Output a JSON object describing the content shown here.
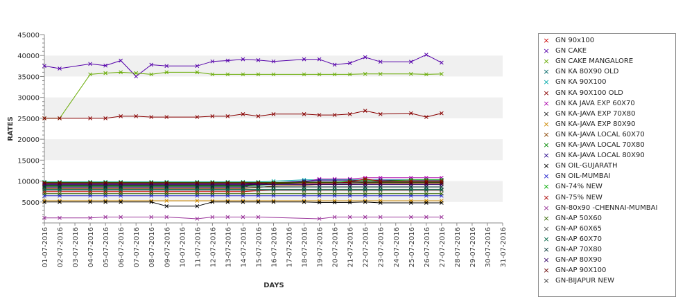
{
  "chart_data": {
    "type": "line",
    "xlabel": "DAYS",
    "ylabel": "RATES",
    "ylim": [
      0,
      45000
    ],
    "yticks": [
      5000,
      10000,
      15000,
      20000,
      25000,
      30000,
      35000,
      40000,
      45000
    ],
    "grid": "alternating horizontal bands",
    "legend_position": "right",
    "x": [
      "01-07-2016",
      "02-07-2016",
      "03-07-2016",
      "04-07-2016",
      "05-07-2016",
      "06-07-2016",
      "07-07-2016",
      "08-07-2016",
      "09-07-2016",
      "10-07-2016",
      "11-07-2016",
      "12-07-2016",
      "13-07-2016",
      "14-07-2016",
      "15-07-2016",
      "16-07-2016",
      "17-07-2016",
      "18-07-2016",
      "19-07-2016",
      "20-07-2016",
      "21-07-2016",
      "22-07-2016",
      "23-07-2016",
      "24-07-2016",
      "25-07-2016",
      "26-07-2016",
      "27-07-2016",
      "28-07-2016",
      "29-07-2016",
      "30-07-2016",
      "31-07-2016"
    ],
    "series": [
      {
        "name": "GN 90x100",
        "color": "#cc0000",
        "values": [
          7500,
          null,
          null,
          7500,
          7500,
          7500,
          null,
          7500,
          7500,
          null,
          7500,
          7500,
          7500,
          7500,
          7700,
          7800,
          null,
          7800,
          7800,
          7800,
          7800,
          7800,
          7800,
          null,
          7800,
          7800,
          7800,
          null,
          null,
          null,
          null
        ]
      },
      {
        "name": "GN CAKE",
        "color": "#5500aa",
        "values": [
          37500,
          36900,
          null,
          38000,
          37600,
          38800,
          35000,
          37800,
          37500,
          null,
          37500,
          38600,
          38800,
          39100,
          38900,
          38600,
          null,
          39100,
          39100,
          37800,
          38200,
          39600,
          38500,
          null,
          38500,
          40200,
          38300,
          null,
          null,
          null,
          null
        ]
      },
      {
        "name": "GN CAKE MANGALORE",
        "color": "#66aa00",
        "values": [
          25000,
          25000,
          null,
          35500,
          35800,
          36000,
          35800,
          35500,
          36000,
          null,
          36000,
          35500,
          35500,
          35500,
          35500,
          35500,
          null,
          35500,
          35500,
          35500,
          35500,
          35600,
          35600,
          null,
          35600,
          35500,
          35600,
          null,
          null,
          null,
          null
        ]
      },
      {
        "name": "GN KA 80X90 OLD",
        "color": "#006666",
        "values": [
          9000,
          9000,
          null,
          9000,
          9000,
          9000,
          null,
          9000,
          9000,
          null,
          9000,
          9000,
          9000,
          9000,
          9000,
          9200,
          null,
          9500,
          9500,
          9500,
          9500,
          9600,
          9600,
          null,
          9600,
          9600,
          9600,
          null,
          null,
          null,
          null
        ]
      },
      {
        "name": "GN KA 90X100",
        "color": "#00aaaa",
        "values": [
          9800,
          9800,
          null,
          9800,
          9800,
          9800,
          null,
          9800,
          9800,
          null,
          9800,
          9800,
          9800,
          9800,
          9800,
          10000,
          null,
          10300,
          10300,
          10300,
          10300,
          10300,
          10300,
          null,
          10300,
          10300,
          10300,
          null,
          null,
          null,
          null
        ]
      },
      {
        "name": "GN KA 90X100 OLD",
        "color": "#880000",
        "values": [
          25000,
          25000,
          null,
          25000,
          25000,
          25500,
          25500,
          25300,
          25300,
          null,
          25300,
          25500,
          25500,
          26000,
          25500,
          26000,
          null,
          26000,
          25800,
          25800,
          26000,
          26800,
          26000,
          null,
          26200,
          25300,
          26200,
          null,
          null,
          null,
          null
        ]
      },
      {
        "name": "GN KA JAVA EXP 60X70",
        "color": "#aa00aa",
        "values": [
          8500,
          8500,
          null,
          8500,
          8500,
          8500,
          null,
          8500,
          8500,
          null,
          8500,
          8500,
          8500,
          8500,
          9500,
          9500,
          null,
          9800,
          10500,
          10500,
          10500,
          10800,
          10800,
          null,
          10800,
          10800,
          10800,
          null,
          null,
          null,
          null
        ]
      },
      {
        "name": "GN KA-JAVA EXP 70X80",
        "color": "#222222",
        "values": [
          9000,
          9000,
          null,
          9000,
          9000,
          9000,
          null,
          9000,
          9000,
          null,
          9000,
          9000,
          9000,
          9000,
          9200,
          9500,
          null,
          9800,
          9800,
          9800,
          9800,
          9900,
          9900,
          null,
          9900,
          9900,
          9900,
          null,
          null,
          null,
          null
        ]
      },
      {
        "name": "GN KA-JAVA EXP 80X90",
        "color": "#cc8800",
        "values": [
          5300,
          5300,
          null,
          5300,
          5300,
          5300,
          null,
          5300,
          5300,
          null,
          5300,
          5300,
          5300,
          5300,
          5300,
          5300,
          null,
          5300,
          5300,
          5300,
          5300,
          5300,
          5300,
          null,
          5300,
          5300,
          5300,
          null,
          null,
          null,
          null
        ]
      },
      {
        "name": "GN KA-JAVA LOCAL 60X70",
        "color": "#884400",
        "values": [
          8200,
          8200,
          null,
          8200,
          8200,
          8200,
          null,
          8200,
          8200,
          null,
          8200,
          8200,
          8200,
          8200,
          8500,
          8800,
          null,
          9000,
          9200,
          9200,
          9200,
          9300,
          9300,
          null,
          9300,
          9300,
          9300,
          null,
          null,
          null,
          null
        ]
      },
      {
        "name": "GN KA-JAVA LOCAL 70X80",
        "color": "#008800",
        "values": [
          8800,
          8800,
          null,
          8800,
          8800,
          8800,
          null,
          8800,
          8800,
          null,
          8800,
          8800,
          8800,
          8800,
          9000,
          9300,
          null,
          9600,
          9600,
          9600,
          9600,
          9700,
          9700,
          null,
          9700,
          9700,
          9700,
          null,
          null,
          null,
          null
        ]
      },
      {
        "name": "GN KA-JAVA LOCAL 80X90",
        "color": "#220088",
        "values": [
          9300,
          9300,
          null,
          9300,
          9300,
          9300,
          null,
          9300,
          9300,
          null,
          9300,
          9300,
          9300,
          9300,
          9400,
          9600,
          null,
          10000,
          10200,
          10200,
          10200,
          10200,
          10200,
          null,
          10200,
          10200,
          10200,
          null,
          null,
          null,
          null
        ]
      },
      {
        "name": "GN OIL-GUJARATH",
        "color": "#000000",
        "values": [
          5000,
          5000,
          null,
          5000,
          5000,
          5000,
          null,
          5000,
          4000,
          null,
          4000,
          5000,
          5000,
          5000,
          5000,
          5000,
          null,
          5000,
          4900,
          4900,
          4900,
          5000,
          4800,
          null,
          4800,
          4800,
          4800,
          null,
          null,
          null,
          null
        ]
      },
      {
        "name": "GN OIL-MUMBAI",
        "color": "#2222cc",
        "values": [
          6500,
          6500,
          null,
          6500,
          6500,
          6500,
          null,
          6500,
          6500,
          null,
          6500,
          6500,
          6500,
          6500,
          6500,
          6500,
          null,
          6500,
          6500,
          6500,
          6500,
          6500,
          6500,
          null,
          6500,
          6500,
          6500,
          null,
          null,
          null,
          null
        ]
      },
      {
        "name": "GN-74% NEW",
        "color": "#00aa00",
        "values": [
          9700,
          9700,
          null,
          9700,
          9700,
          9700,
          null,
          9700,
          9700,
          null,
          9700,
          9700,
          9700,
          9700,
          9700,
          9700,
          null,
          9700,
          9700,
          9700,
          10000,
          10300,
          10000,
          null,
          10300,
          10300,
          10300,
          null,
          null,
          null,
          null
        ]
      },
      {
        "name": "GN-75% NEW",
        "color": "#aa0000",
        "values": [
          9500,
          9500,
          null,
          9500,
          9500,
          9500,
          null,
          9500,
          9500,
          null,
          9500,
          9500,
          9500,
          9500,
          9500,
          9500,
          null,
          9500,
          9500,
          9500,
          9800,
          10500,
          10000,
          null,
          10000,
          10000,
          10000,
          null,
          null,
          null,
          null
        ]
      },
      {
        "name": "GN-80x90 -CHENNAI-MUMBAI",
        "color": "#993399",
        "values": [
          1200,
          1200,
          null,
          1200,
          1400,
          1400,
          null,
          1400,
          1400,
          null,
          1000,
          1400,
          1400,
          1400,
          1400,
          null,
          null,
          null,
          1000,
          1400,
          1400,
          1400,
          1400,
          null,
          1400,
          1400,
          1400,
          null,
          null,
          null,
          null
        ]
      },
      {
        "name": "GN-AP 50X60",
        "color": "#336600",
        "values": [
          7000,
          7000,
          null,
          7000,
          7000,
          7000,
          null,
          7000,
          7000,
          null,
          7000,
          7000,
          7000,
          7000,
          7000,
          7000,
          null,
          7000,
          7000,
          7000,
          7000,
          7000,
          7000,
          null,
          7000,
          7000,
          7000,
          null,
          null,
          null,
          null
        ]
      },
      {
        "name": "GN-AP 60X65",
        "color": "#555555",
        "values": [
          7800,
          7800,
          null,
          7800,
          7800,
          7800,
          null,
          7800,
          7800,
          null,
          7800,
          7800,
          7800,
          7800,
          7800,
          7800,
          null,
          7800,
          7800,
          7800,
          7800,
          7800,
          7800,
          null,
          7800,
          7800,
          7800,
          null,
          null,
          null,
          null
        ]
      },
      {
        "name": "GN-AP 60X70",
        "color": "#006644",
        "values": [
          8000,
          8000,
          null,
          8000,
          8000,
          8000,
          null,
          8000,
          8000,
          null,
          8000,
          8000,
          8000,
          8000,
          8000,
          8000,
          null,
          8000,
          8000,
          8000,
          8000,
          8000,
          8000,
          null,
          8000,
          8000,
          8000,
          null,
          null,
          null,
          null
        ]
      },
      {
        "name": "GN-AP 70X80",
        "color": "#003333",
        "values": [
          8600,
          8600,
          null,
          8600,
          8600,
          8600,
          null,
          8600,
          8600,
          null,
          8600,
          8600,
          8600,
          8600,
          8600,
          8600,
          null,
          8600,
          8600,
          8600,
          8600,
          8600,
          8600,
          null,
          8600,
          8600,
          8600,
          null,
          null,
          null,
          null
        ]
      },
      {
        "name": "GN-AP 80X90",
        "color": "#330066",
        "values": [
          9200,
          9200,
          null,
          9200,
          9200,
          9200,
          null,
          9200,
          9200,
          null,
          9200,
          9200,
          9200,
          9200,
          9200,
          9200,
          null,
          9200,
          9200,
          9200,
          9200,
          9200,
          9200,
          null,
          9200,
          9200,
          9200,
          null,
          null,
          null,
          null
        ]
      },
      {
        "name": "GN-AP 90X100",
        "color": "#660000",
        "values": [
          9600,
          9600,
          null,
          9600,
          9600,
          9600,
          null,
          9600,
          9600,
          null,
          9600,
          9600,
          9600,
          9600,
          9600,
          9600,
          null,
          9600,
          9600,
          9600,
          9600,
          9600,
          9600,
          null,
          9600,
          9600,
          9600,
          null,
          null,
          null,
          null
        ]
      },
      {
        "name": "GN-BIJAPUR NEW",
        "color": "#444444",
        "values": [
          null,
          null,
          null,
          null,
          null,
          null,
          null,
          null,
          null,
          null,
          null,
          null,
          null,
          null,
          null,
          null,
          null,
          null,
          null,
          null,
          null,
          null,
          null,
          null,
          null,
          null,
          null,
          null,
          null,
          null,
          null
        ]
      }
    ]
  }
}
